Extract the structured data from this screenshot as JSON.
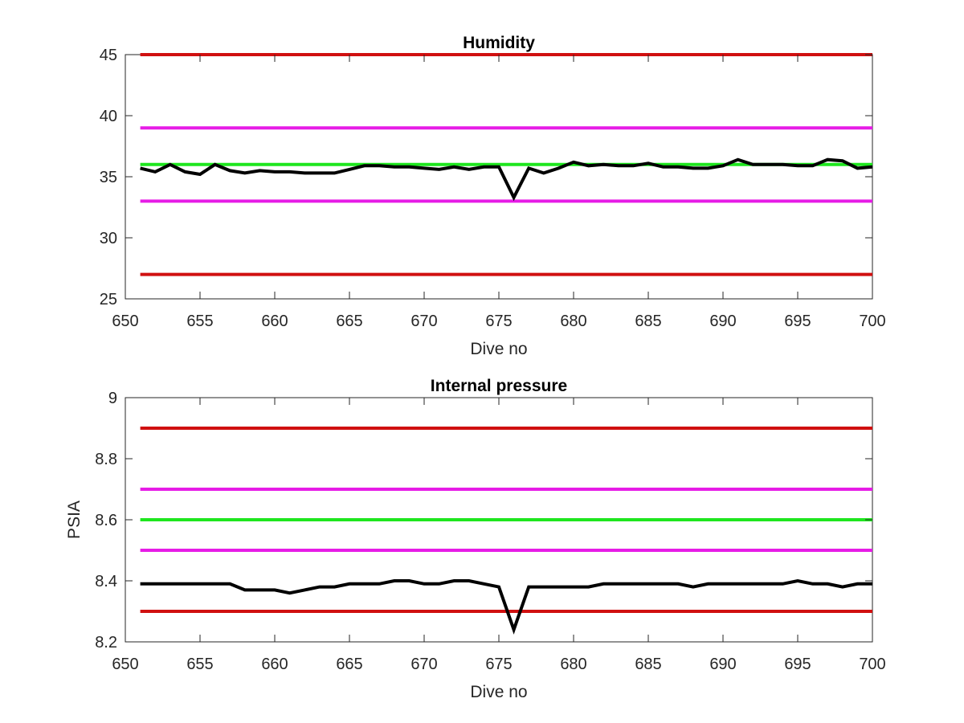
{
  "chart_data": [
    {
      "type": "line",
      "title": "Humidity",
      "xlabel": "Dive no",
      "ylabel": "",
      "xlim": [
        650,
        700
      ],
      "ylim": [
        25,
        45
      ],
      "xticks": [
        650,
        655,
        660,
        665,
        670,
        675,
        680,
        685,
        690,
        695,
        700
      ],
      "yticks": [
        25,
        30,
        35,
        40,
        45
      ],
      "xtick_labels": [
        "650",
        "655",
        "660",
        "665",
        "670",
        "675",
        "680",
        "685",
        "690",
        "695",
        "700"
      ],
      "ytick_labels": [
        "25",
        "30",
        "35",
        "40",
        "45"
      ],
      "grid": false,
      "thresholds": [
        {
          "y": 45,
          "color": "#d01010"
        },
        {
          "y": 39,
          "color": "#e61ce6"
        },
        {
          "y": 36,
          "color": "#1ee61e"
        },
        {
          "y": 33,
          "color": "#e61ce6"
        },
        {
          "y": 27,
          "color": "#d01010"
        }
      ],
      "series": [
        {
          "color": "#000000",
          "x": [
            651,
            652,
            653,
            654,
            655,
            656,
            657,
            658,
            659,
            660,
            661,
            662,
            663,
            664,
            665,
            666,
            667,
            668,
            669,
            670,
            671,
            672,
            673,
            674,
            675,
            676,
            677,
            678,
            679,
            680,
            681,
            682,
            683,
            684,
            685,
            686,
            687,
            688,
            689,
            690,
            691,
            692,
            693,
            694,
            695,
            696,
            697,
            698,
            699,
            700
          ],
          "y": [
            35.7,
            35.4,
            36.0,
            35.4,
            35.2,
            36.0,
            35.5,
            35.3,
            35.5,
            35.4,
            35.4,
            35.3,
            35.3,
            35.3,
            35.6,
            35.9,
            35.9,
            35.8,
            35.8,
            35.7,
            35.6,
            35.8,
            35.6,
            35.8,
            35.8,
            33.3,
            35.7,
            35.3,
            35.7,
            36.2,
            35.9,
            36.0,
            35.9,
            35.9,
            36.1,
            35.8,
            35.8,
            35.7,
            35.7,
            35.9,
            36.4,
            36.0,
            36.0,
            36.0,
            35.9,
            35.9,
            36.4,
            36.3,
            35.7,
            35.8
          ]
        }
      ]
    },
    {
      "type": "line",
      "title": "Internal pressure",
      "xlabel": "Dive no",
      "ylabel": "PSIA",
      "xlim": [
        650,
        700
      ],
      "ylim": [
        8.2,
        9.0
      ],
      "xticks": [
        650,
        655,
        660,
        665,
        670,
        675,
        680,
        685,
        690,
        695,
        700
      ],
      "yticks": [
        8.2,
        8.4,
        8.6,
        8.8,
        9.0
      ],
      "xtick_labels": [
        "650",
        "655",
        "660",
        "665",
        "670",
        "675",
        "680",
        "685",
        "690",
        "695",
        "700"
      ],
      "ytick_labels": [
        "8.2",
        "8.4",
        "8.6",
        "8.8",
        "9"
      ],
      "grid": false,
      "thresholds": [
        {
          "y": 8.9,
          "color": "#d01010"
        },
        {
          "y": 8.7,
          "color": "#e61ce6"
        },
        {
          "y": 8.6,
          "color": "#1ee61e"
        },
        {
          "y": 8.5,
          "color": "#e61ce6"
        },
        {
          "y": 8.3,
          "color": "#d01010"
        }
      ],
      "series": [
        {
          "color": "#000000",
          "x": [
            651,
            652,
            653,
            654,
            655,
            656,
            657,
            658,
            659,
            660,
            661,
            662,
            663,
            664,
            665,
            666,
            667,
            668,
            669,
            670,
            671,
            672,
            673,
            674,
            675,
            676,
            677,
            678,
            679,
            680,
            681,
            682,
            683,
            684,
            685,
            686,
            687,
            688,
            689,
            690,
            691,
            692,
            693,
            694,
            695,
            696,
            697,
            698,
            699,
            700
          ],
          "y": [
            8.39,
            8.39,
            8.39,
            8.39,
            8.39,
            8.39,
            8.39,
            8.37,
            8.37,
            8.37,
            8.36,
            8.37,
            8.38,
            8.38,
            8.39,
            8.39,
            8.39,
            8.4,
            8.4,
            8.39,
            8.39,
            8.4,
            8.4,
            8.39,
            8.38,
            8.24,
            8.38,
            8.38,
            8.38,
            8.38,
            8.38,
            8.39,
            8.39,
            8.39,
            8.39,
            8.39,
            8.39,
            8.38,
            8.39,
            8.39,
            8.39,
            8.39,
            8.39,
            8.39,
            8.4,
            8.39,
            8.39,
            8.38,
            8.39,
            8.39
          ]
        }
      ]
    }
  ]
}
